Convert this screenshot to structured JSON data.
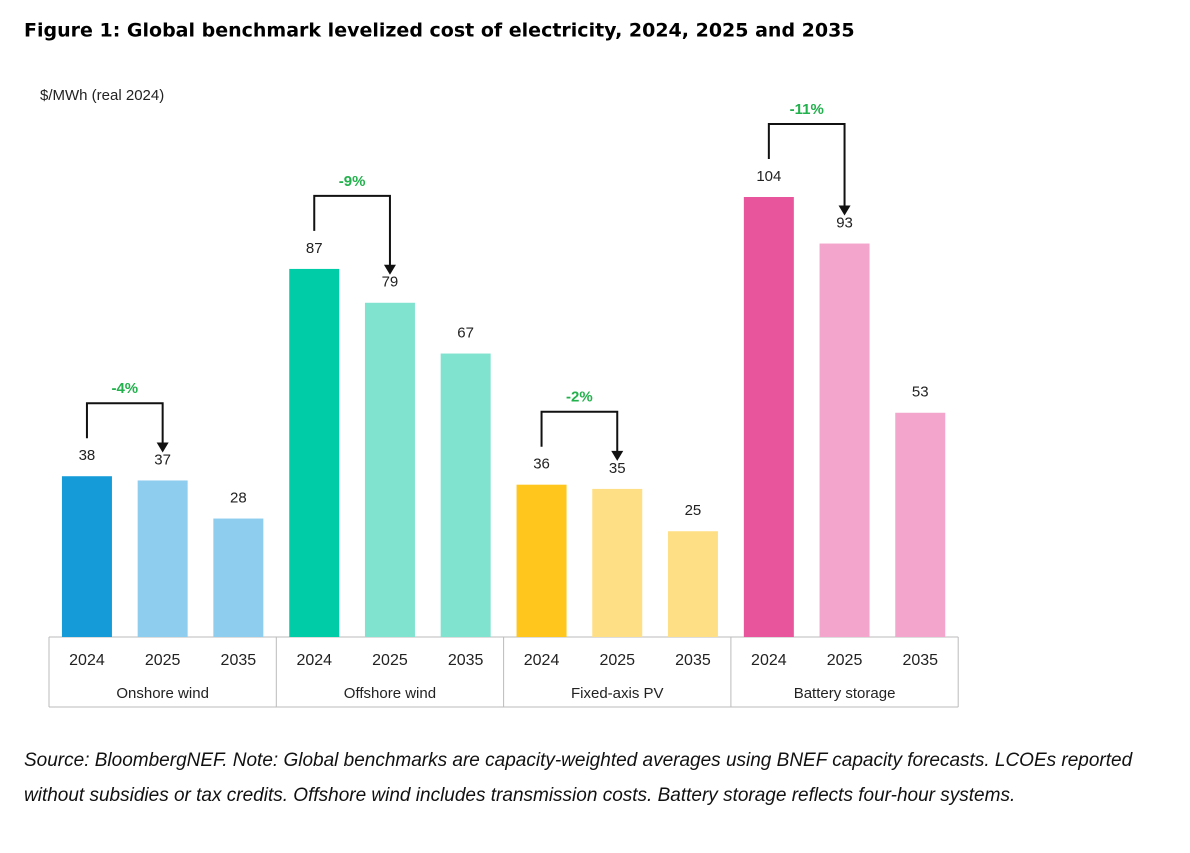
{
  "chart_data": {
    "type": "bar",
    "title": "Figure 1: Global benchmark levelized cost of electricity, 2024, 2025 and 2035",
    "y_label": "$/MWh (real 2024)",
    "groups": [
      {
        "name": "Onshore wind",
        "categories": [
          "2024",
          "2025",
          "2035"
        ],
        "values": [
          38,
          37,
          28
        ],
        "colors": [
          "#159bd7",
          "#8fcdef",
          "#8fcdef"
        ],
        "change_label": "-4%"
      },
      {
        "name": "Offshore wind",
        "categories": [
          "2024",
          "2025",
          "2035"
        ],
        "values": [
          87,
          79,
          67
        ],
        "colors": [
          "#00cca8",
          "#80e3d0",
          "#80e3d0"
        ],
        "change_label": "-9%"
      },
      {
        "name": "Fixed-axis PV",
        "categories": [
          "2024",
          "2025",
          "2035"
        ],
        "values": [
          36,
          35,
          25
        ],
        "colors": [
          "#ffc61e",
          "#ffdf85",
          "#ffdf85"
        ],
        "change_label": "-2%"
      },
      {
        "name": "Battery storage",
        "categories": [
          "2024",
          "2025",
          "2035"
        ],
        "values": [
          104,
          93,
          53
        ],
        "colors": [
          "#e8559d",
          "#f3a5cc",
          "#f3a5cc"
        ],
        "change_label": "-11%"
      }
    ],
    "change_color": "#22b14c",
    "source_note": "Source: BloombergNEF. Note: Global benchmarks are capacity-weighted averages using BNEF capacity forecasts. LCOEs reported without subsidies or tax credits. Offshore wind includes transmission costs. Battery storage reflects four-hour systems."
  }
}
